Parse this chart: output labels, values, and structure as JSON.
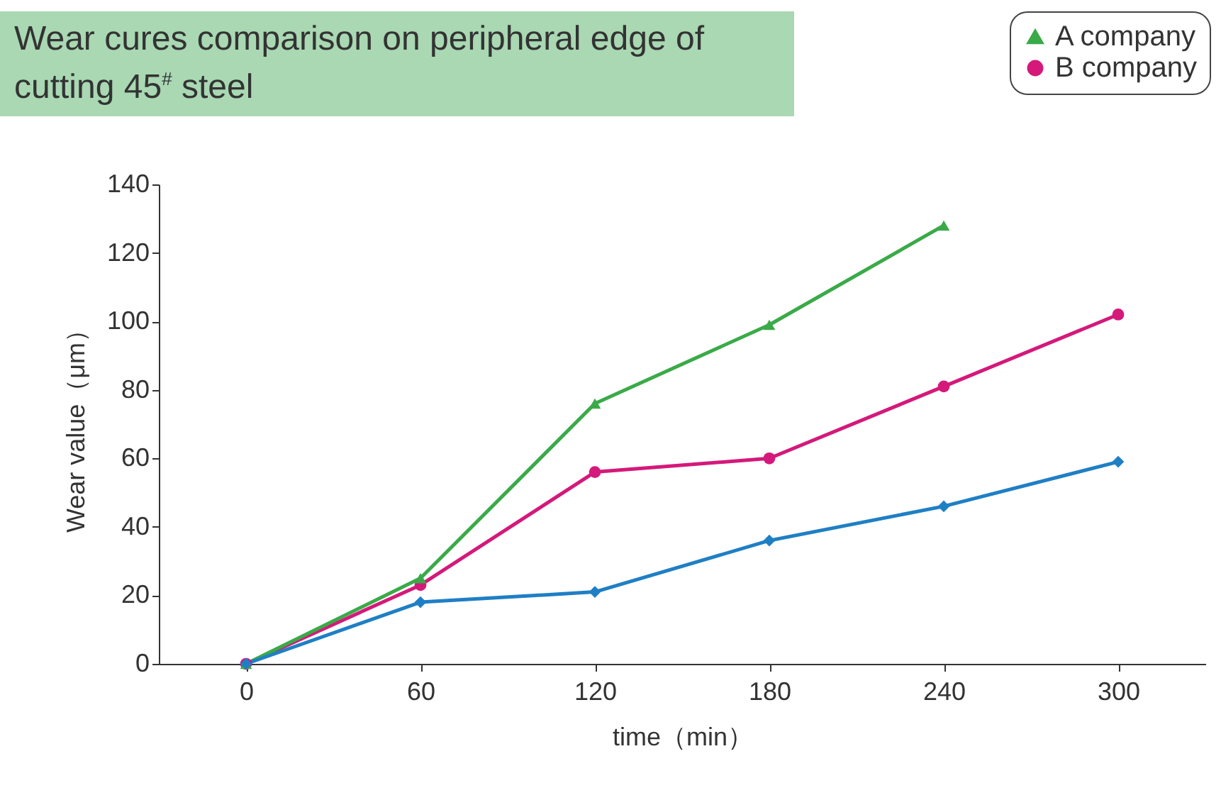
{
  "chart_data": {
    "type": "line",
    "title": "Wear cures comparison on peripheral edge of cutting 45$^{#}$ steel",
    "xlabel": "time（min）",
    "ylabel": "Wear value（μm）",
    "x": [
      0,
      60,
      120,
      180,
      240,
      300
    ],
    "series": [
      {
        "color": "#1f7fc4",
        "marker": "diamond",
        "values": [
          0,
          18,
          21,
          36,
          46,
          59
        ]
      },
      {
        "name": "A company",
        "color": "#3aaa48",
        "marker": "triangle",
        "values": [
          0,
          25,
          76,
          99,
          128,
          null
        ]
      },
      {
        "name": "B company",
        "color": "#d4197a",
        "marker": "circle",
        "values": [
          0,
          23,
          56,
          60,
          81,
          102
        ]
      }
    ],
    "xlim": [
      -30,
      330
    ],
    "xticks": [
      0,
      60,
      120,
      180,
      240,
      300
    ],
    "ylim": [
      0,
      140
    ],
    "yticks": [
      0,
      20,
      40,
      60,
      80,
      100,
      120,
      140
    ],
    "grid": false,
    "legend": "top right",
    "line_style": "solid"
  }
}
